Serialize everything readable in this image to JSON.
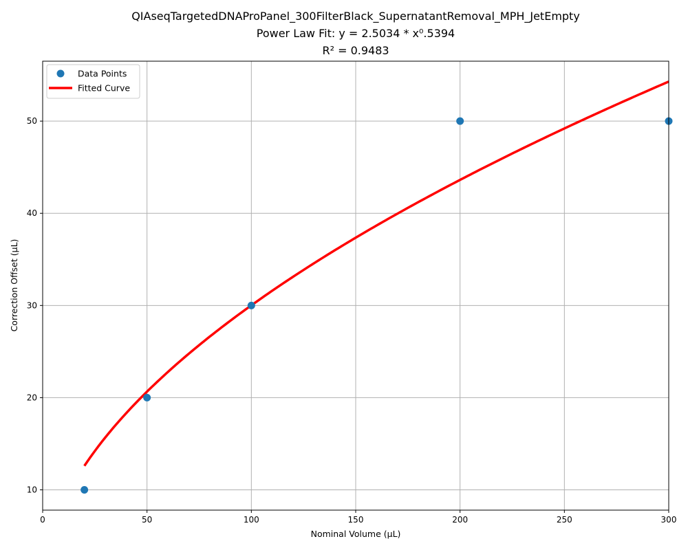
{
  "chart_data": {
    "type": "scatter",
    "title_lines": [
      "QIAseqTargetedDNAProPanel_300FilterBlack_SupernatantRemoval_MPH_JetEmpty",
      "Power Law Fit: y = 2.5034 * x⁰.5394",
      "R² = 0.9483"
    ],
    "xlabel": "Nominal Volume (µL)",
    "ylabel": "Correction Offset (µL)",
    "xlim": [
      0,
      300
    ],
    "ylim": [
      7.8,
      56.5
    ],
    "xticks": [
      0,
      50,
      100,
      150,
      200,
      250,
      300
    ],
    "yticks": [
      10,
      20,
      30,
      40,
      50
    ],
    "grid": true,
    "legend_position": "top-left",
    "series": [
      {
        "name": "Data Points",
        "kind": "scatter",
        "color": "#1f77b4",
        "x": [
          20,
          50,
          100,
          200,
          300
        ],
        "y": [
          10,
          20,
          30,
          50,
          50
        ]
      },
      {
        "name": "Fitted Curve",
        "kind": "line",
        "color": "#ff0000",
        "fit": {
          "a": 2.5034,
          "b": 0.5394
        },
        "x_range": [
          20,
          300
        ]
      }
    ]
  }
}
